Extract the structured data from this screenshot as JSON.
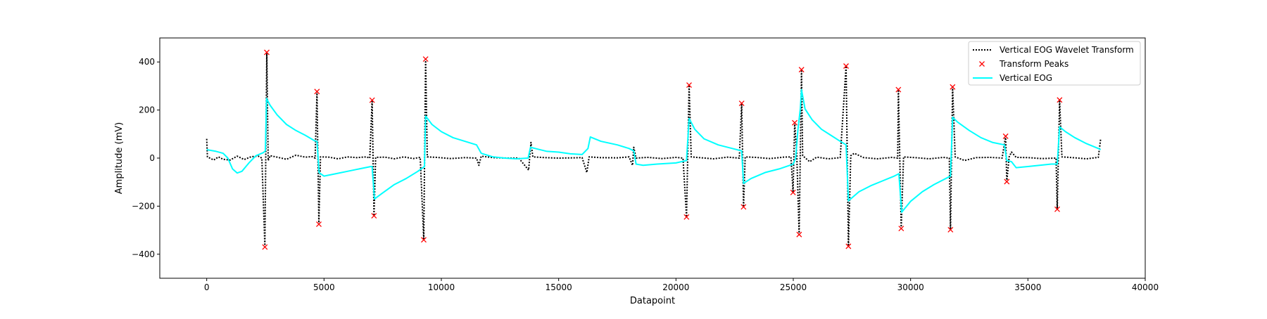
{
  "chart_data": {
    "type": "line",
    "title": "",
    "xlabel": "Datapoint",
    "ylabel": "Amplitude (mV)",
    "xlim": [
      -2000,
      40000
    ],
    "ylim": [
      -500,
      500
    ],
    "x_ticks": [
      0,
      5000,
      10000,
      15000,
      20000,
      25000,
      30000,
      35000,
      40000
    ],
    "y_ticks": [
      -400,
      -200,
      0,
      200,
      400
    ],
    "grid": false,
    "legend_position": "top-right",
    "series": [
      {
        "name": "Vertical EOG Wavelet Transform",
        "style": "dotted",
        "color": "#000000",
        "points": [
          [
            0,
            80
          ],
          [
            30,
            5
          ],
          [
            300,
            -8
          ],
          [
            500,
            5
          ],
          [
            700,
            -5
          ],
          [
            1000,
            -8
          ],
          [
            1300,
            8
          ],
          [
            1600,
            -6
          ],
          [
            1900,
            6
          ],
          [
            2200,
            8
          ],
          [
            2350,
            0
          ],
          [
            2480,
            -370
          ],
          [
            2560,
            440
          ],
          [
            2620,
            -10
          ],
          [
            2700,
            10
          ],
          [
            3000,
            4
          ],
          [
            3400,
            -5
          ],
          [
            3800,
            12
          ],
          [
            4200,
            4
          ],
          [
            4500,
            6
          ],
          [
            4620,
            0
          ],
          [
            4700,
            277
          ],
          [
            4780,
            -275
          ],
          [
            4850,
            5
          ],
          [
            5200,
            4
          ],
          [
            5600,
            -3
          ],
          [
            6000,
            5
          ],
          [
            6400,
            2
          ],
          [
            6800,
            5
          ],
          [
            6950,
            0
          ],
          [
            7050,
            241
          ],
          [
            7130,
            -240
          ],
          [
            7200,
            3
          ],
          [
            7600,
            4
          ],
          [
            8000,
            -3
          ],
          [
            8400,
            5
          ],
          [
            8800,
            -2
          ],
          [
            9100,
            3
          ],
          [
            9250,
            -340
          ],
          [
            9330,
            412
          ],
          [
            9400,
            5
          ],
          [
            9800,
            3
          ],
          [
            10400,
            -2
          ],
          [
            11000,
            2
          ],
          [
            11500,
            0
          ],
          [
            11600,
            -30
          ],
          [
            11700,
            8
          ],
          [
            12200,
            2
          ],
          [
            12800,
            0
          ],
          [
            13300,
            0
          ],
          [
            13720,
            -50
          ],
          [
            13820,
            65
          ],
          [
            13900,
            5
          ],
          [
            14400,
            2
          ],
          [
            15000,
            0
          ],
          [
            15600,
            1
          ],
          [
            16000,
            2
          ],
          [
            16200,
            -60
          ],
          [
            16300,
            5
          ],
          [
            16800,
            2
          ],
          [
            17500,
            1
          ],
          [
            18000,
            5
          ],
          [
            18150,
            -30
          ],
          [
            18200,
            45
          ],
          [
            18300,
            0
          ],
          [
            18800,
            3
          ],
          [
            19400,
            -2
          ],
          [
            20000,
            3
          ],
          [
            20300,
            0
          ],
          [
            20450,
            -245
          ],
          [
            20560,
            304
          ],
          [
            20650,
            5
          ],
          [
            21000,
            2
          ],
          [
            21600,
            -3
          ],
          [
            22200,
            4
          ],
          [
            22700,
            0
          ],
          [
            22800,
            228
          ],
          [
            22880,
            -203
          ],
          [
            22950,
            5
          ],
          [
            23400,
            3
          ],
          [
            24000,
            -2
          ],
          [
            24600,
            4
          ],
          [
            24900,
            5
          ],
          [
            24990,
            -143
          ],
          [
            25060,
            147
          ],
          [
            25150,
            10
          ],
          [
            25250,
            -318
          ],
          [
            25350,
            368
          ],
          [
            25400,
            10
          ],
          [
            25700,
            -15
          ],
          [
            26000,
            4
          ],
          [
            26500,
            -3
          ],
          [
            27000,
            2
          ],
          [
            27250,
            383
          ],
          [
            27350,
            -367
          ],
          [
            27450,
            10
          ],
          [
            27600,
            20
          ],
          [
            28000,
            2
          ],
          [
            28600,
            -3
          ],
          [
            29200,
            3
          ],
          [
            29450,
            0
          ],
          [
            29480,
            285
          ],
          [
            29600,
            -293
          ],
          [
            29700,
            5
          ],
          [
            30200,
            2
          ],
          [
            30800,
            -3
          ],
          [
            31400,
            3
          ],
          [
            31650,
            0
          ],
          [
            31700,
            -298
          ],
          [
            31790,
            296
          ],
          [
            31900,
            5
          ],
          [
            32300,
            -10
          ],
          [
            32800,
            2
          ],
          [
            33400,
            3
          ],
          [
            33900,
            0
          ],
          [
            34050,
            91
          ],
          [
            34100,
            -98
          ],
          [
            34200,
            5
          ],
          [
            34300,
            25
          ],
          [
            34500,
            3
          ],
          [
            35000,
            2
          ],
          [
            35600,
            -2
          ],
          [
            36200,
            0
          ],
          [
            36250,
            -213
          ],
          [
            36350,
            242
          ],
          [
            36450,
            5
          ],
          [
            36900,
            2
          ],
          [
            37500,
            -3
          ],
          [
            38000,
            3
          ],
          [
            38100,
            80
          ]
        ]
      },
      {
        "name": "Transform Peaks",
        "style": "markers",
        "color": "#ff0000",
        "points": [
          [
            2480,
            -370
          ],
          [
            2560,
            440
          ],
          [
            4700,
            277
          ],
          [
            4780,
            -275
          ],
          [
            7050,
            241
          ],
          [
            7130,
            -240
          ],
          [
            9250,
            -340
          ],
          [
            9330,
            412
          ],
          [
            20450,
            -245
          ],
          [
            20560,
            304
          ],
          [
            22800,
            228
          ],
          [
            22880,
            -203
          ],
          [
            24990,
            -143
          ],
          [
            25060,
            147
          ],
          [
            25250,
            -318
          ],
          [
            25350,
            368
          ],
          [
            27250,
            383
          ],
          [
            27350,
            -367
          ],
          [
            29480,
            285
          ],
          [
            29600,
            -293
          ],
          [
            31700,
            -298
          ],
          [
            31790,
            296
          ],
          [
            34050,
            91
          ],
          [
            34100,
            -98
          ],
          [
            36250,
            -213
          ],
          [
            36350,
            242
          ]
        ]
      },
      {
        "name": "Vertical EOG",
        "style": "solid",
        "color": "#00ffff",
        "points": [
          [
            0,
            35
          ],
          [
            400,
            28
          ],
          [
            700,
            20
          ],
          [
            900,
            0
          ],
          [
            1100,
            -45
          ],
          [
            1300,
            -62
          ],
          [
            1500,
            -55
          ],
          [
            1800,
            -20
          ],
          [
            2100,
            10
          ],
          [
            2400,
            22
          ],
          [
            2500,
            30
          ],
          [
            2550,
            248
          ],
          [
            2700,
            220
          ],
          [
            3000,
            180
          ],
          [
            3400,
            140
          ],
          [
            3800,
            115
          ],
          [
            4200,
            95
          ],
          [
            4600,
            72
          ],
          [
            4700,
            70
          ],
          [
            4790,
            -60
          ],
          [
            5000,
            -75
          ],
          [
            5500,
            -65
          ],
          [
            6000,
            -55
          ],
          [
            6500,
            -45
          ],
          [
            7000,
            -35
          ],
          [
            7050,
            -35
          ],
          [
            7150,
            -170
          ],
          [
            7500,
            -145
          ],
          [
            8000,
            -110
          ],
          [
            8500,
            -85
          ],
          [
            9000,
            -55
          ],
          [
            9280,
            -35
          ],
          [
            9330,
            175
          ],
          [
            9600,
            140
          ],
          [
            10000,
            110
          ],
          [
            10500,
            85
          ],
          [
            11000,
            70
          ],
          [
            11500,
            55
          ],
          [
            11700,
            20
          ],
          [
            12200,
            5
          ],
          [
            12700,
            0
          ],
          [
            13200,
            -3
          ],
          [
            13700,
            0
          ],
          [
            13800,
            45
          ],
          [
            14000,
            40
          ],
          [
            14500,
            28
          ],
          [
            15000,
            25
          ],
          [
            15500,
            18
          ],
          [
            16000,
            15
          ],
          [
            16250,
            40
          ],
          [
            16350,
            88
          ],
          [
            16800,
            70
          ],
          [
            17500,
            55
          ],
          [
            18000,
            40
          ],
          [
            18200,
            30
          ],
          [
            18300,
            -25
          ],
          [
            18600,
            -30
          ],
          [
            19200,
            -25
          ],
          [
            20000,
            -20
          ],
          [
            20450,
            -10
          ],
          [
            20560,
            165
          ],
          [
            20800,
            120
          ],
          [
            21200,
            80
          ],
          [
            21800,
            55
          ],
          [
            22400,
            40
          ],
          [
            22800,
            30
          ],
          [
            22880,
            -105
          ],
          [
            23200,
            -85
          ],
          [
            23800,
            -60
          ],
          [
            24400,
            -45
          ],
          [
            25000,
            -25
          ],
          [
            25100,
            0
          ],
          [
            25200,
            120
          ],
          [
            25300,
            205
          ],
          [
            25350,
            285
          ],
          [
            25500,
            205
          ],
          [
            25800,
            160
          ],
          [
            26200,
            120
          ],
          [
            26600,
            95
          ],
          [
            27000,
            70
          ],
          [
            27250,
            55
          ],
          [
            27350,
            -178
          ],
          [
            27800,
            -140
          ],
          [
            28300,
            -115
          ],
          [
            28800,
            -95
          ],
          [
            29300,
            -75
          ],
          [
            29500,
            -65
          ],
          [
            29620,
            -225
          ],
          [
            30000,
            -180
          ],
          [
            30500,
            -140
          ],
          [
            31000,
            -110
          ],
          [
            31500,
            -85
          ],
          [
            31700,
            -75
          ],
          [
            31790,
            170
          ],
          [
            32000,
            150
          ],
          [
            32500,
            115
          ],
          [
            33000,
            85
          ],
          [
            33500,
            65
          ],
          [
            34000,
            55
          ],
          [
            34100,
            -10
          ],
          [
            34300,
            -15
          ],
          [
            34500,
            -40
          ],
          [
            35000,
            -35
          ],
          [
            35500,
            -30
          ],
          [
            36000,
            -25
          ],
          [
            36250,
            -25
          ],
          [
            36350,
            130
          ],
          [
            36600,
            110
          ],
          [
            37000,
            85
          ],
          [
            37500,
            60
          ],
          [
            38000,
            40
          ],
          [
            38100,
            35
          ]
        ]
      }
    ]
  }
}
